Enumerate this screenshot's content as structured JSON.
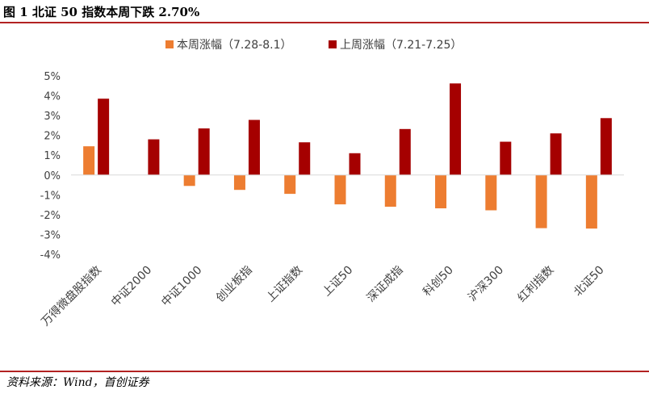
{
  "header": {
    "title": "图 1  北证 50 指数本周下跌 2.70%"
  },
  "footer": {
    "source": "资料来源：Wind，首创证券"
  },
  "colors": {
    "this_week": "#ED7D31",
    "last_week": "#A50000",
    "rule": "#B22222"
  },
  "chart_data": {
    "type": "bar",
    "categories": [
      "万得微盘股指数",
      "中证2000",
      "中证1000",
      "创业板指",
      "上证指数",
      "上证50",
      "深证成指",
      "科创50",
      "沪深300",
      "红利指数",
      "北证50"
    ],
    "series": [
      {
        "name": "本周涨幅（7.28-8.1）",
        "values": [
          1.45,
          0.0,
          -0.55,
          -0.75,
          -0.95,
          -1.48,
          -1.6,
          -1.68,
          -1.78,
          -2.68,
          -2.7
        ]
      },
      {
        "name": "上周涨幅（7.21-7.25）",
        "values": [
          3.85,
          1.8,
          2.35,
          2.78,
          1.65,
          1.1,
          2.32,
          4.62,
          1.68,
          2.1,
          2.87
        ]
      }
    ],
    "y_ticks": [
      "5%",
      "4%",
      "3%",
      "2%",
      "1%",
      "0%",
      "-1%",
      "-2%",
      "-3%",
      "-4%"
    ],
    "ylim": [
      -4,
      5
    ],
    "grid": false,
    "legend": "top-center"
  }
}
